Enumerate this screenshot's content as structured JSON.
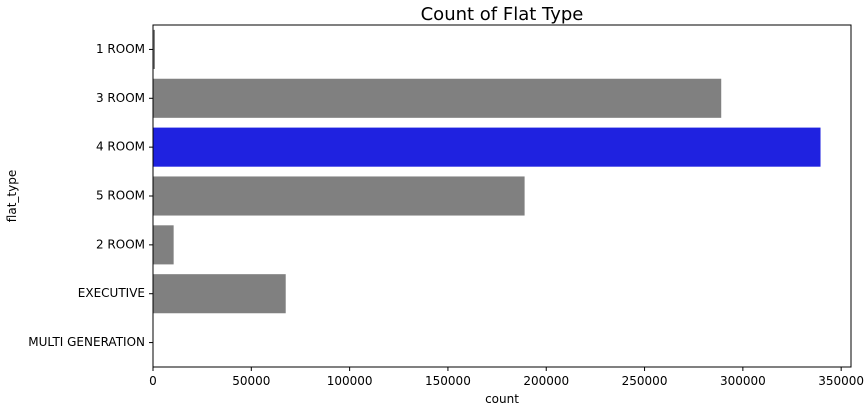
{
  "chart_data": {
    "type": "bar",
    "orientation": "horizontal",
    "title": "Count of Flat Type",
    "xlabel": "count",
    "ylabel": "flat_type",
    "categories": [
      "1 ROOM",
      "3 ROOM",
      "4 ROOM",
      "5 ROOM",
      "2 ROOM",
      "EXECUTIVE",
      "MULTI GENERATION"
    ],
    "values": [
      1000,
      289000,
      339500,
      189000,
      10500,
      67500,
      250
    ],
    "xlim": [
      0,
      355000
    ],
    "xticks": [
      0,
      50000,
      100000,
      150000,
      200000,
      250000,
      300000,
      350000
    ],
    "xtick_labels": [
      "0",
      "50000",
      "100000",
      "150000",
      "200000",
      "250000",
      "300000",
      "350000"
    ],
    "grid": false,
    "colors": {
      "default_bar": "#808080",
      "highlight_bar": "#1f22e0",
      "axis": "#000000"
    },
    "highlight_category": "4 ROOM"
  }
}
